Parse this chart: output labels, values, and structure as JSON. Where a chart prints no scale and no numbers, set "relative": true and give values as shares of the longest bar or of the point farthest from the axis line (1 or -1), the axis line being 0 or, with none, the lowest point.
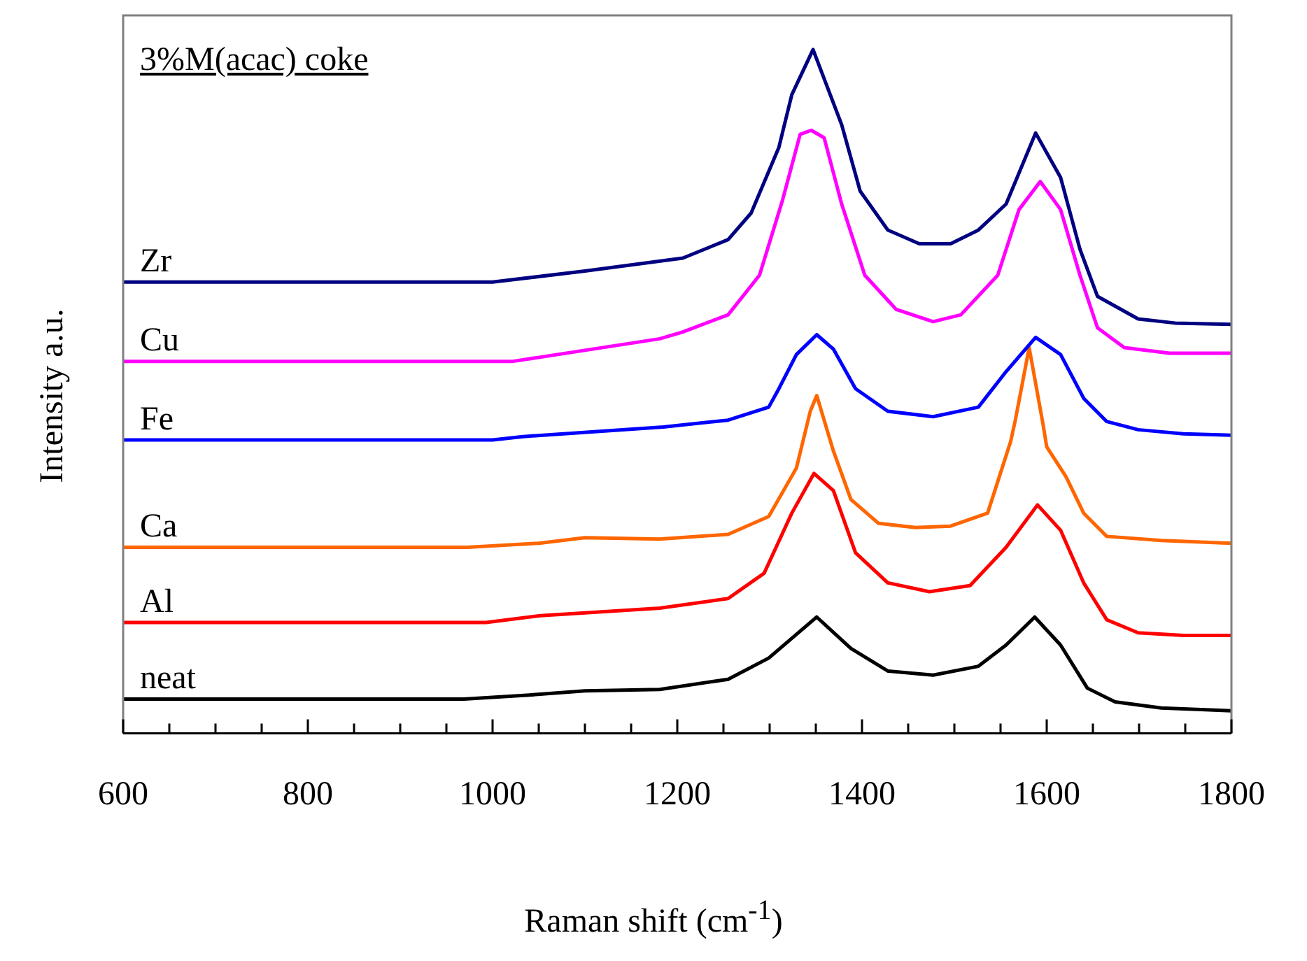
{
  "chart_data": {
    "type": "line",
    "title": "3%M(acac) coke",
    "xlabel": "Raman shift (cm$^{-1}$)",
    "ylabel": "Intensity a.u.",
    "relative": true,
    "xlim": [
      600,
      1800
    ],
    "xticks": [
      600,
      {
        "value": 650,
        "label": null
      },
      {
        "value": 700,
        "label": null
      },
      {
        "value": 750,
        "label": null
      },
      800,
      {
        "value": 850,
        "label": null
      },
      {
        "value": 900,
        "label": null
      },
      {
        "value": 950,
        "label": null
      },
      1000,
      {
        "value": 1050,
        "label": null
      },
      {
        "value": 1100,
        "label": null
      },
      {
        "value": 1150,
        "label": null
      },
      1200,
      {
        "value": 1250,
        "label": null
      },
      {
        "value": 1300,
        "label": null
      },
      {
        "value": 1350,
        "label": null
      },
      1400,
      {
        "value": 1450,
        "label": null
      },
      {
        "value": 1500,
        "label": null
      },
      {
        "value": 1550,
        "label": null
      },
      1600,
      {
        "value": 1650,
        "label": null
      },
      {
        "value": 1700,
        "label": null
      },
      {
        "value": 1750,
        "label": null
      },
      1800
    ],
    "grid": false,
    "legend": false,
    "marker": "none",
    "line_style": "solid",
    "series": [
      {
        "name": "Zr",
        "color": "#000080",
        "x": [
          600,
          1000,
          1100,
          1206,
          1255,
          1280,
          1310,
          1324,
          1347,
          1378,
          1398,
          1428,
          1462,
          1496,
          1526,
          1556,
          1588,
          1615,
          1636,
          1655,
          1699,
          1739,
          1800
        ],
        "values": [
          0.66,
          0.66,
          0.676,
          0.695,
          0.722,
          0.761,
          0.857,
          0.934,
          1,
          0.89,
          0.793,
          0.736,
          0.716,
          0.716,
          0.736,
          0.774,
          0.878,
          0.813,
          0.708,
          0.639,
          0.606,
          0.6,
          0.598
        ]
      },
      {
        "name": "Cu",
        "color": "#ff00ff",
        "x": [
          600,
          1022,
          1181,
          1206,
          1255,
          1289,
          1314,
          1333,
          1345,
          1359,
          1378,
          1403,
          1437,
          1477,
          1507,
          1547,
          1570,
          1593,
          1615,
          1636,
          1655,
          1684,
          1733,
          1800
        ],
        "values": [
          0.544,
          0.544,
          0.577,
          0.587,
          0.612,
          0.67,
          0.78,
          0.876,
          0.882,
          0.871,
          0.774,
          0.67,
          0.62,
          0.602,
          0.612,
          0.67,
          0.766,
          0.807,
          0.766,
          0.67,
          0.593,
          0.564,
          0.556,
          0.556
        ]
      },
      {
        "name": "Fe",
        "color": "#0000ff",
        "x": [
          600,
          1000,
          1033,
          1077,
          1185,
          1255,
          1299,
          1310,
          1329,
          1351,
          1369,
          1393,
          1428,
          1477,
          1526,
          1556,
          1588,
          1615,
          1640,
          1665,
          1699,
          1748,
          1800
        ],
        "values": [
          0.429,
          0.429,
          0.434,
          0.438,
          0.448,
          0.458,
          0.477,
          0.504,
          0.554,
          0.583,
          0.562,
          0.504,
          0.471,
          0.463,
          0.477,
          0.529,
          0.579,
          0.554,
          0.49,
          0.456,
          0.444,
          0.438,
          0.436
        ]
      },
      {
        "name": "Ca",
        "color": "#ff6600",
        "x": [
          600,
          973,
          1050,
          1100,
          1181,
          1255,
          1299,
          1329,
          1344,
          1351,
          1369,
          1388,
          1418,
          1458,
          1496,
          1536,
          1561,
          1566,
          1581,
          1596,
          1600,
          1621,
          1640,
          1665,
          1724,
          1800
        ],
        "values": [
          0.272,
          0.272,
          0.278,
          0.286,
          0.284,
          0.291,
          0.317,
          0.388,
          0.471,
          0.494,
          0.413,
          0.342,
          0.307,
          0.301,
          0.303,
          0.322,
          0.427,
          0.458,
          0.564,
          0.452,
          0.419,
          0.375,
          0.322,
          0.288,
          0.282,
          0.278
        ]
      },
      {
        "name": "Al",
        "color": "#ff0000",
        "x": [
          600,
          993,
          1052,
          1181,
          1255,
          1294,
          1324,
          1348,
          1369,
          1393,
          1428,
          1473,
          1517,
          1556,
          1590,
          1615,
          1640,
          1665,
          1699,
          1748,
          1800
        ],
        "values": [
          0.162,
          0.162,
          0.172,
          0.183,
          0.197,
          0.234,
          0.322,
          0.38,
          0.355,
          0.264,
          0.22,
          0.207,
          0.216,
          0.272,
          0.334,
          0.297,
          0.22,
          0.166,
          0.147,
          0.143,
          0.143
        ]
      },
      {
        "name": "neat",
        "color": "#000000",
        "x": [
          600,
          969,
          1040,
          1100,
          1181,
          1255,
          1299,
          1351,
          1388,
          1428,
          1477,
          1526,
          1556,
          1587,
          1615,
          1644,
          1674,
          1724,
          1800
        ],
        "values": [
          0.05,
          0.05,
          0.056,
          0.062,
          0.064,
          0.079,
          0.11,
          0.17,
          0.124,
          0.091,
          0.085,
          0.098,
          0.129,
          0.17,
          0.129,
          0.066,
          0.046,
          0.037,
          0.033
        ]
      }
    ]
  }
}
